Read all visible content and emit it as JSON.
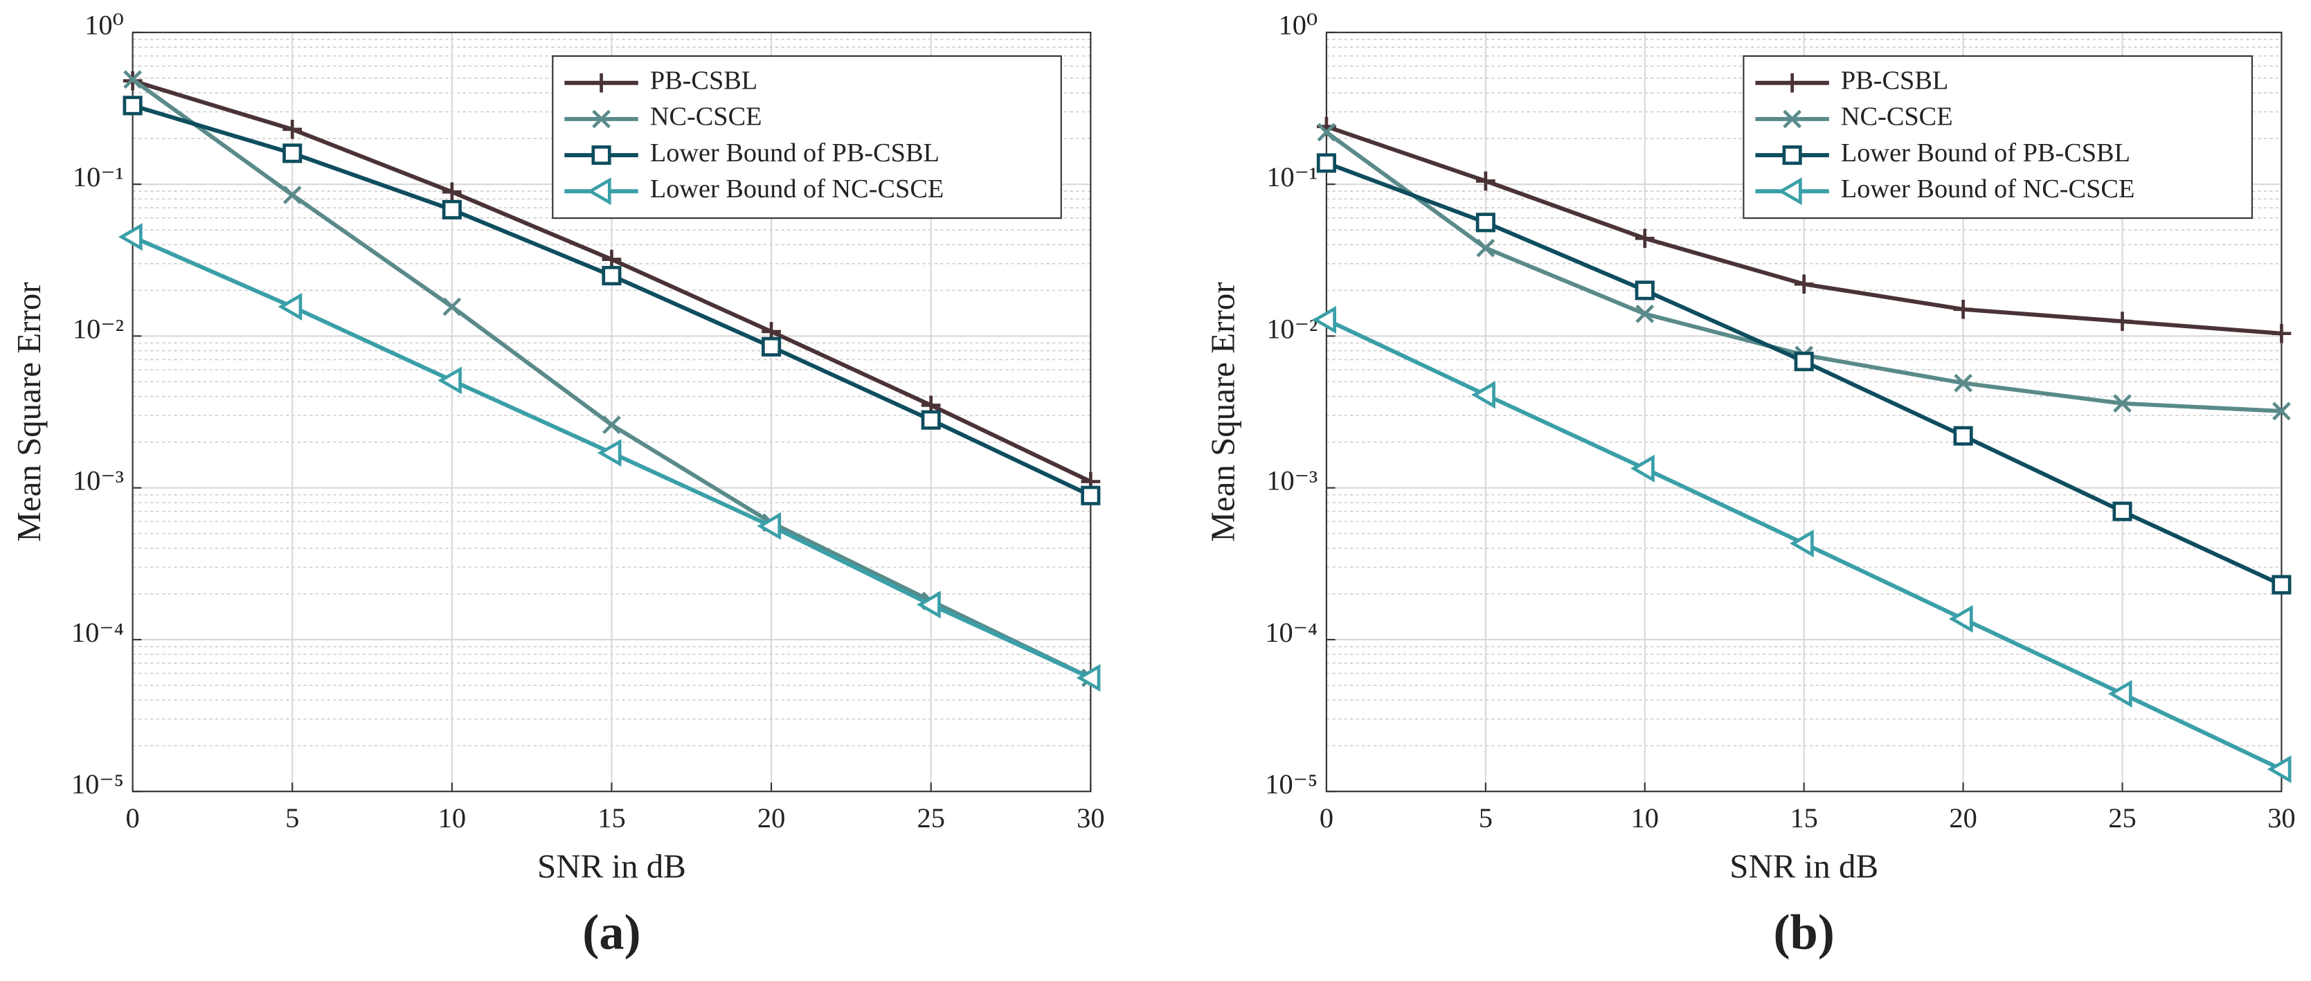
{
  "chart_data": [
    {
      "type": "line",
      "caption": "(a)",
      "xlabel": "SNR in dB",
      "ylabel": "Mean Square Error",
      "x": [
        0,
        5,
        10,
        15,
        20,
        25,
        30
      ],
      "xlim": [
        0,
        30
      ],
      "xticks": [
        0,
        5,
        10,
        15,
        20,
        25,
        30
      ],
      "ylim": [
        1e-05,
        1
      ],
      "log_y": true,
      "grid": true,
      "minor_grid": true,
      "legend": "upper right",
      "yticks": [
        {
          "value": 1e-05,
          "label": "10⁻⁵"
        },
        {
          "value": 0.0001,
          "label": "10⁻⁴"
        },
        {
          "value": 0.001,
          "label": "10⁻³"
        },
        {
          "value": 0.01,
          "label": "10⁻²"
        },
        {
          "value": 0.1,
          "label": "10⁻¹"
        },
        {
          "value": 1,
          "label": "10⁰"
        }
      ],
      "series": [
        {
          "name": "PB-CSBL",
          "color": "#4a3336",
          "marker": "plus",
          "values": [
            0.48,
            0.23,
            0.089,
            0.032,
            0.0107,
            0.0035,
            0.0011
          ]
        },
        {
          "name": "NC-CSCE",
          "color": "#5a8a8a",
          "marker": "x",
          "values": [
            0.49,
            0.085,
            0.0156,
            0.0026,
            0.00059,
            0.00018,
            5.6e-05
          ]
        },
        {
          "name": "Lower Bound of PB-CSBL",
          "color": "#0d4d5e",
          "marker": "square",
          "values": [
            0.33,
            0.16,
            0.068,
            0.025,
            0.0085,
            0.0028,
            0.00089
          ]
        },
        {
          "name": "Lower Bound of NC-CSCE",
          "color": "#3a9fa8",
          "marker": "triangle-left",
          "values": [
            0.045,
            0.0156,
            0.0051,
            0.0017,
            0.00056,
            0.00017,
            5.6e-05
          ]
        }
      ]
    },
    {
      "type": "line",
      "caption": "(b)",
      "xlabel": "SNR in dB",
      "ylabel": "Mean Square Error",
      "x": [
        0,
        5,
        10,
        15,
        20,
        25,
        30
      ],
      "xlim": [
        0,
        30
      ],
      "xticks": [
        0,
        5,
        10,
        15,
        20,
        25,
        30
      ],
      "ylim": [
        1e-05,
        1
      ],
      "log_y": true,
      "grid": true,
      "minor_grid": true,
      "legend": "upper right",
      "yticks": [
        {
          "value": 1e-05,
          "label": "10⁻⁵"
        },
        {
          "value": 0.0001,
          "label": "10⁻⁴"
        },
        {
          "value": 0.001,
          "label": "10⁻³"
        },
        {
          "value": 0.01,
          "label": "10⁻²"
        },
        {
          "value": 0.1,
          "label": "10⁻¹"
        },
        {
          "value": 1,
          "label": "10⁰"
        }
      ],
      "series": [
        {
          "name": "PB-CSBL",
          "color": "#4a3336",
          "marker": "plus",
          "values": [
            0.24,
            0.105,
            0.044,
            0.022,
            0.015,
            0.0125,
            0.0104
          ]
        },
        {
          "name": "NC-CSCE",
          "color": "#5a8a8a",
          "marker": "x",
          "values": [
            0.22,
            0.038,
            0.014,
            0.0075,
            0.0049,
            0.0036,
            0.0032
          ]
        },
        {
          "name": "Lower Bound of PB-CSBL",
          "color": "#0d4d5e",
          "marker": "square",
          "values": [
            0.138,
            0.056,
            0.02,
            0.0068,
            0.0022,
            0.0007,
            0.00023
          ]
        },
        {
          "name": "Lower Bound of NC-CSCE",
          "color": "#3a9fa8",
          "marker": "triangle-left",
          "values": [
            0.0128,
            0.0041,
            0.00134,
            0.00043,
            0.000137,
            4.4e-05,
            1.4e-05
          ]
        }
      ]
    }
  ]
}
